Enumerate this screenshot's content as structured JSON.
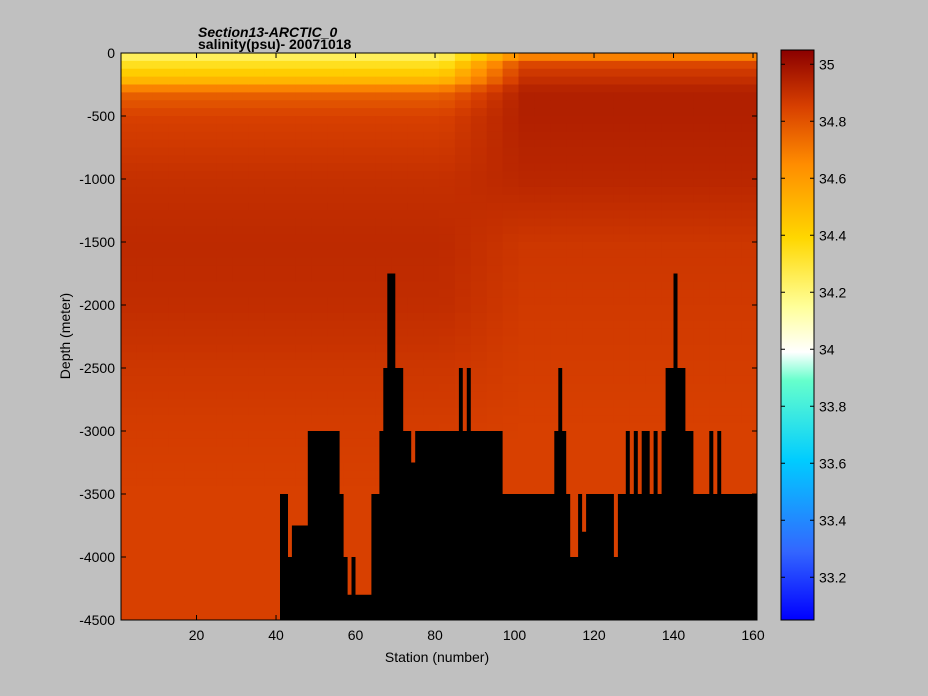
{
  "chart_data": {
    "type": "heatmap",
    "title_line1": "Section13-ARCTIC_0",
    "title_line2": "salinity(psu)- 20071018",
    "xlabel": "Station (number)",
    "ylabel": "Depth (meter)",
    "xlim": [
      1,
      161
    ],
    "ylim": [
      -4500,
      0
    ],
    "x_ticks": [
      20,
      40,
      60,
      80,
      100,
      120,
      140,
      160
    ],
    "y_ticks": [
      0,
      -500,
      -1000,
      -1500,
      -2000,
      -2500,
      -3000,
      -3500,
      -4000,
      -4500
    ],
    "colorbar": {
      "range": [
        33.05,
        35.05
      ],
      "ticks": [
        33.2,
        33.4,
        33.6,
        33.8,
        34,
        34.2,
        34.4,
        34.6,
        34.8,
        35
      ],
      "colormap": "jet"
    },
    "seafloor_color": "#000000",
    "bathymetry": {
      "stations": [
        41,
        43,
        44,
        48,
        56,
        57,
        58,
        59,
        60,
        64,
        66,
        67,
        68,
        70,
        72,
        74,
        75,
        86,
        87,
        88,
        89,
        97,
        110,
        111,
        112,
        113,
        114,
        115,
        116,
        117,
        118,
        125,
        126,
        128,
        129,
        130,
        131,
        132,
        134,
        135,
        136,
        137,
        138,
        139,
        140,
        141,
        142,
        143,
        144,
        145,
        146,
        148,
        149,
        150,
        151,
        152,
        153,
        154,
        155,
        156,
        157,
        158,
        159,
        160,
        161
      ],
      "depth": [
        -3500,
        -4000,
        -3750,
        -3000,
        -3500,
        -4000,
        -4300,
        -4000,
        -4300,
        -3500,
        -3000,
        -2500,
        -1750,
        -2500,
        -3000,
        -3250,
        -3000,
        -2500,
        -3000,
        -2500,
        -3000,
        -3500,
        -3000,
        -2500,
        -3000,
        -3500,
        -4000,
        -4000,
        -3500,
        -3800,
        -3500,
        -4000,
        -3500,
        -3000,
        -3500,
        -3000,
        -3500,
        -3000,
        -3500,
        -3000,
        -3500,
        -3000,
        -2500,
        -2500,
        -1750,
        -2500,
        -2500,
        -3000,
        -3000,
        -3500,
        -3500,
        -3500,
        -3000,
        -3500,
        -3000,
        -3500,
        -3500,
        -3500,
        -3500,
        -3500,
        -3500,
        -3500,
        -3500,
        -3500,
        -3500
      ]
    },
    "salinity_profile": {
      "depth": [
        0,
        -100,
        -250,
        -300,
        -500,
        -1000,
        -1500,
        -2000,
        -2500,
        -3000,
        -3500,
        -4000,
        -4500
      ],
      "west_values": [
        34.2,
        34.35,
        34.55,
        34.75,
        34.85,
        34.9,
        34.92,
        34.91,
        34.88,
        34.86,
        34.85,
        34.85,
        34.85
      ],
      "east_values": [
        34.6,
        34.85,
        34.92,
        34.95,
        34.95,
        34.93,
        34.88,
        34.87,
        34.86,
        34.85,
        34.85,
        34.85,
        34.85
      ]
    }
  }
}
